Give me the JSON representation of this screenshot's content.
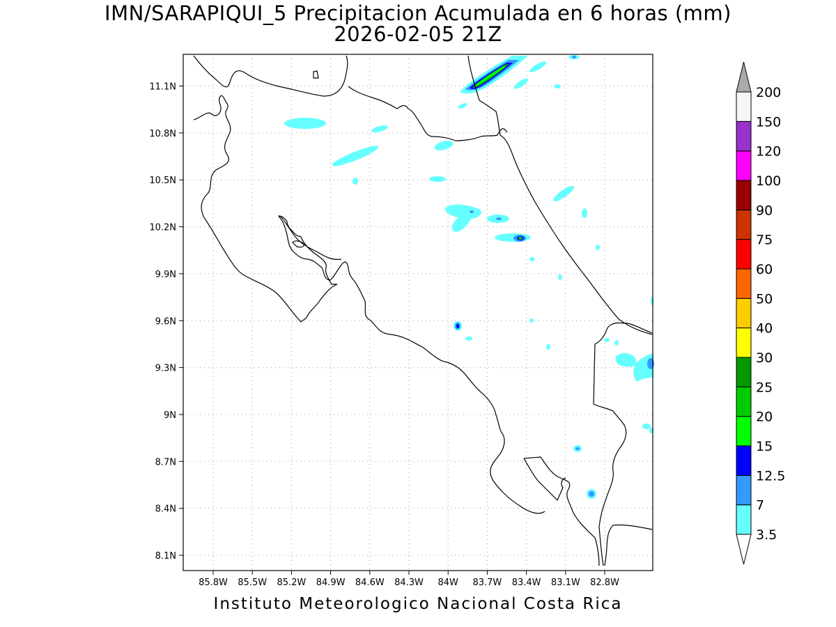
{
  "title": {
    "line1": "IMN/SARAPIQUI_5 Precipitacion Acumulada en 6 horas (mm)",
    "line2": "2026-02-05 21Z"
  },
  "footer": "Instituto Meteorologico Nacional Costa Rica",
  "map": {
    "lat_labels": [
      "11.1N",
      "10.8N",
      "10.5N",
      "10.2N",
      "9.9N",
      "9.6N",
      "9.3N",
      "9N",
      "8.7N",
      "8.4N",
      "8.1N"
    ],
    "lat_values": [
      11.1,
      10.8,
      10.5,
      10.2,
      9.9,
      9.6,
      9.3,
      9.0,
      8.7,
      8.4,
      8.1
    ],
    "lon_labels": [
      "85.8W",
      "85.5W",
      "85.2W",
      "84.9W",
      "84.6W",
      "84.3W",
      "84W",
      "83.7W",
      "83.4W",
      "83.1W",
      "82.8W"
    ],
    "lon_values": [
      -85.8,
      -85.5,
      -85.2,
      -84.9,
      -84.6,
      -84.3,
      -84.0,
      -83.7,
      -83.4,
      -83.1,
      -82.8
    ],
    "grid": "dotted"
  },
  "colorbar": {
    "labels": [
      "3.5",
      "7",
      "12.5",
      "15",
      "20",
      "25",
      "30",
      "40",
      "50",
      "60",
      "75",
      "90",
      "100",
      "120",
      "150",
      "200"
    ],
    "colors": [
      "#66ffff",
      "#3399ff",
      "#0000ff",
      "#00ff00",
      "#00cc00",
      "#009900",
      "#ffff00",
      "#ffcc00",
      "#ff6600",
      "#ff0000",
      "#cc3300",
      "#990000",
      "#ff00ff",
      "#9933cc",
      "#f5f5f5",
      "#aaaaaa"
    ]
  }
}
